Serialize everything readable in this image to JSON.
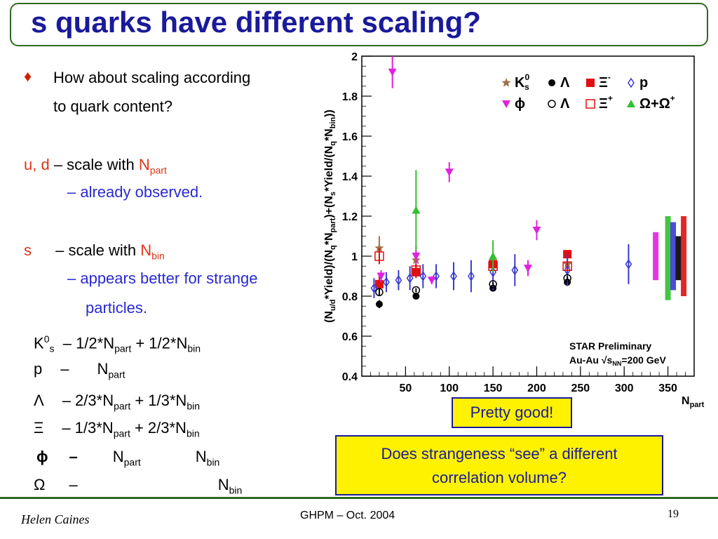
{
  "slide": {
    "title": "s quarks have different scaling?",
    "bullet": {
      "symbol": "♦",
      "line1": "How about scaling according",
      "line2": "to quark content?"
    },
    "ud": {
      "label": "u, d",
      "text": "– scale with ",
      "n": "N",
      "sub": "part",
      "note": "– already observed."
    },
    "s": {
      "label": "s",
      "text": "– scale with ",
      "n": "N",
      "sub": "bin",
      "note1": "– appears better for strange",
      "note2": "particles."
    },
    "formulas": [
      {
        "sym": "K",
        "sup": "0",
        "sub": "s",
        "p1": "– 1/2*N",
        "s1": "part",
        "p2": " + 1/2*N",
        "s2": "bin"
      },
      {
        "sym": "p",
        "p1": "–",
        "p2": "N",
        "s2": "part"
      },
      {
        "sym": "Λ",
        "p1": "–  2/3*N",
        "s1": "part",
        "p2": " + 1/3*N",
        "s2": "bin"
      },
      {
        "sym": "Ξ",
        "p1": "– 1/3*N",
        "s1": "part",
        "p2": " + 2/3*N",
        "s2": "bin"
      },
      {
        "sym": "ϕ",
        "p1": "–",
        "p2": "N",
        "s2": "part",
        "p3": "N",
        "s3": "bin"
      },
      {
        "sym": "Ω",
        "p1": "–",
        "p3": "N",
        "s3": "bin"
      }
    ],
    "callout1": "Pretty good!",
    "callout2_l1": "Does strangeness “see” a different",
    "callout2_l2": "correlation volume?",
    "footer": {
      "author": "Helen Caines",
      "center": "GHPM – Oct. 2004",
      "page": "19"
    }
  },
  "colors": {
    "title": "#1a1a9a",
    "red": "#e0331a",
    "blue": "#2a2ad0",
    "green": "#2e6b1f",
    "yellow": "#fff200"
  },
  "chart_data": {
    "type": "scatter",
    "xlabel": "N",
    "xlabel_sub": "part",
    "ylabel": "(N",
    "ylabel_sub": "u/d",
    "ylabel_rest": "*Yield)/(N",
    "ylabel_sub2": "q",
    "ylabel_rest2": "*N",
    "ylabel_sub3": "part",
    "ylabel_rest3": ")+(N",
    "ylabel_sub4": "s",
    "ylabel_rest4": "*Yield/(N",
    "ylabel_sub5": "q",
    "ylabel_rest5": "*N",
    "ylabel_sub6": "bin",
    "ylabel_rest6": "))",
    "xlim": [
      0,
      380
    ],
    "ylim": [
      0.4,
      2.0
    ],
    "x_ticks": [
      50,
      100,
      150,
      200,
      250,
      300,
      350
    ],
    "y_ticks": [
      0.4,
      0.6,
      0.8,
      1,
      1.2,
      1.4,
      1.6,
      1.8,
      2
    ],
    "annotation1": "STAR Preliminary",
    "annotation2": "Au-Au √s",
    "annotation2_sub": "NN",
    "annotation2_rest": "=200 GeV",
    "legend": [
      {
        "label": "K",
        "sup": "0",
        "sub": "s",
        "color": "#a0704a",
        "marker": "star"
      },
      {
        "label": "Λ",
        "color": "#000000",
        "marker": "circle"
      },
      {
        "label": "Ξ",
        "sup": "-",
        "color": "#e01010",
        "marker": "square"
      },
      {
        "label": "p",
        "color": "#3a3ad0",
        "marker": "diamond-open"
      },
      {
        "label": "ϕ",
        "color": "#e020e0",
        "marker": "triangle-down"
      },
      {
        "label": "Λ",
        "color": "#000000",
        "marker": "circle-open"
      },
      {
        "label": "Ξ",
        "sup": "+",
        "color": "#e01010",
        "marker": "square-open"
      },
      {
        "label": "Ω+Ω",
        "sup": "+",
        "color": "#30c030",
        "marker": "triangle"
      }
    ],
    "series": [
      {
        "name": "K0s",
        "color": "#a0704a",
        "marker": "star",
        "x": [
          20,
          62,
          150,
          235
        ],
        "y": [
          1.04,
          0.98,
          0.97,
          0.96
        ],
        "err": [
          0.06,
          0.04,
          0.04,
          0.04
        ]
      },
      {
        "name": "Lambda",
        "color": "#000000",
        "marker": "circle",
        "x": [
          20,
          62,
          150,
          235
        ],
        "y": [
          0.76,
          0.8,
          0.84,
          0.87
        ],
        "err": [
          0.02,
          0.01,
          0.01,
          0.01
        ]
      },
      {
        "name": "Xi-",
        "color": "#e01010",
        "marker": "square",
        "x": [
          20,
          62,
          150,
          235
        ],
        "y": [
          0.86,
          0.92,
          0.96,
          1.01
        ],
        "err": [
          0.04,
          0.03,
          0.03,
          0.02
        ]
      },
      {
        "name": "pbar",
        "color": "#3a3ad0",
        "marker": "diamond-open",
        "x": [
          14,
          28,
          42,
          55,
          70,
          85,
          105,
          125,
          150,
          175,
          235,
          305
        ],
        "y": [
          0.84,
          0.87,
          0.88,
          0.89,
          0.9,
          0.9,
          0.9,
          0.9,
          0.92,
          0.93,
          0.93,
          0.96
        ],
        "err": [
          0.05,
          0.05,
          0.05,
          0.06,
          0.06,
          0.06,
          0.07,
          0.08,
          0.09,
          0.08,
          0.08,
          0.1
        ]
      },
      {
        "name": "phi",
        "color": "#e020e0",
        "marker": "triangle-down",
        "x": [
          22,
          35,
          62,
          80,
          100,
          190,
          200
        ],
        "y": [
          0.9,
          1.92,
          1.0,
          0.88,
          1.42,
          0.94,
          1.13
        ],
        "err": [
          0.03,
          0.08,
          0.05,
          0.02,
          0.05,
          0.04,
          0.05
        ]
      },
      {
        "name": "Lambdabar",
        "color": "#000000",
        "marker": "circle-open",
        "x": [
          20,
          62,
          150,
          235
        ],
        "y": [
          0.82,
          0.83,
          0.86,
          0.89
        ],
        "err": [
          0.02,
          0.01,
          0.01,
          0.01
        ]
      },
      {
        "name": "Xi+",
        "color": "#e01010",
        "marker": "square-open",
        "x": [
          20,
          62,
          150,
          235
        ],
        "y": [
          1.0,
          0.93,
          0.95,
          0.95
        ],
        "err": [
          0.04,
          0.03,
          0.03,
          0.02
        ]
      },
      {
        "name": "Omega",
        "color": "#30c030",
        "marker": "triangle",
        "x": [
          62,
          150
        ],
        "y": [
          1.23,
          1.0
        ],
        "err": [
          0.2,
          0.08
        ]
      }
    ],
    "sys_bars": [
      {
        "color": "#e020e0",
        "x": 336,
        "lo": 0.88,
        "hi": 1.12
      },
      {
        "color": "#30c030",
        "x": 350,
        "lo": 0.78,
        "hi": 1.2
      },
      {
        "color": "#3a3ad0",
        "x": 356,
        "lo": 0.83,
        "hi": 1.17
      },
      {
        "color": "#000000",
        "x": 362,
        "lo": 0.88,
        "hi": 1.1
      },
      {
        "color": "#e01010",
        "x": 368,
        "lo": 0.8,
        "hi": 1.2
      }
    ]
  }
}
